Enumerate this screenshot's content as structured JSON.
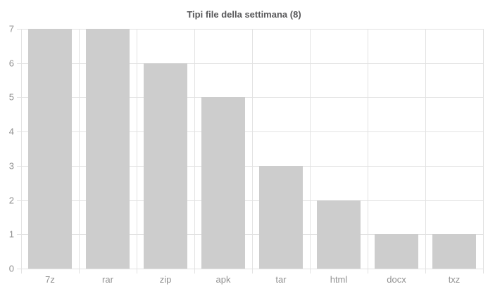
{
  "chart_data": {
    "type": "bar",
    "title": "Tipi file della settimana (8)",
    "categories": [
      "7z",
      "rar",
      "zip",
      "apk",
      "tar",
      "html",
      "docx",
      "txz"
    ],
    "values": [
      7,
      7,
      6,
      5,
      3,
      2,
      1,
      1
    ],
    "xlabel": "",
    "ylabel": "",
    "ylim": [
      0,
      7
    ],
    "yticks": [
      0,
      1,
      2,
      3,
      4,
      5,
      6,
      7
    ],
    "grid": true,
    "legend": false,
    "colors": {
      "bar": "#cdcdcd",
      "gridline": "#e2e2e2",
      "axis_label": "#919191",
      "title": "#58585a",
      "background": "#ffffff"
    }
  }
}
